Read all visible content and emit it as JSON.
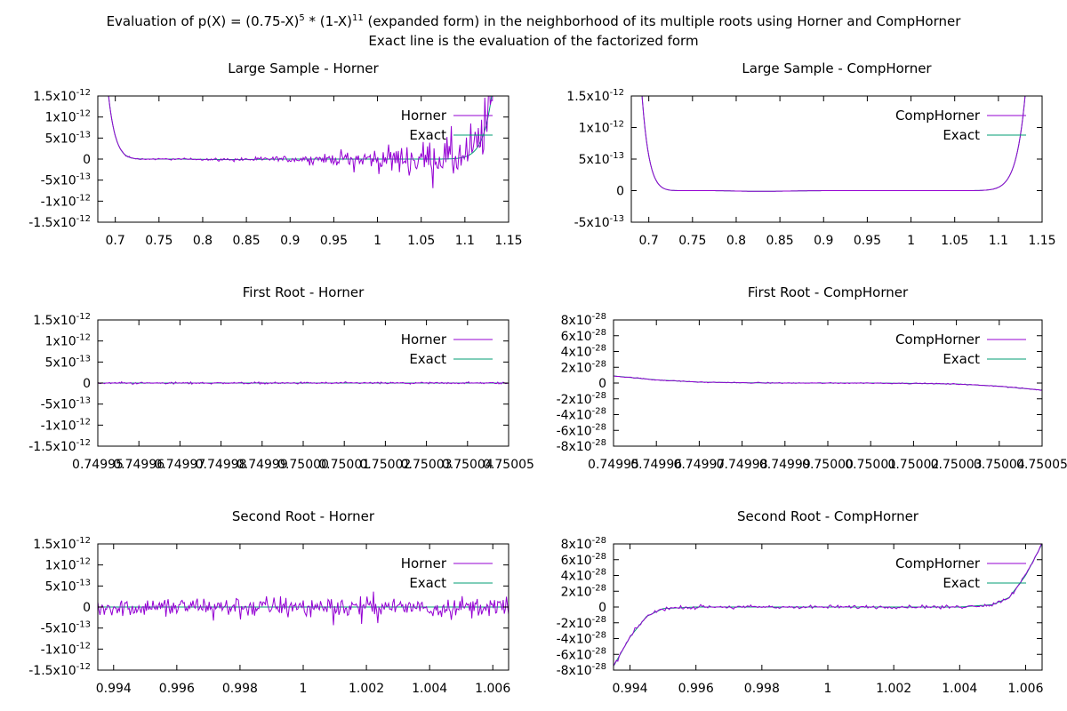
{
  "page": {
    "title_line1": "Evaluation of p(X) = (0.75-X)^5 * (1-X)^11 (expanded form) in the neighborhood of its multiple roots using Horner and CompHorner",
    "title_line2": "Exact line is the evaluation of the factorized form"
  },
  "colors": {
    "horner": "#9400d3",
    "exact": "#009e73",
    "axis": "#000000"
  },
  "chart_data": [
    {
      "type": "line",
      "title": "Large Sample - Horner",
      "xlim": [
        0.68,
        1.15
      ],
      "ylim": [
        -1.5e-12,
        1.5e-12
      ],
      "xticks": [
        "0.7",
        "0.75",
        "0.8",
        "0.85",
        "0.9",
        "0.95",
        "1",
        "1.05",
        "1.1",
        "1.15"
      ],
      "xtick_values": [
        0.7,
        0.75,
        0.8,
        0.85,
        0.9,
        0.95,
        1,
        1.05,
        1.1,
        1.15
      ],
      "yticks": [
        "1.5x10^-12",
        "1x10^-12",
        "5x10^-13",
        "0",
        "-5x10^-13",
        "-1x10^-12",
        "-1.5x10^-12"
      ],
      "ytick_values": [
        1.5e-12,
        1e-12,
        5e-13,
        0,
        -5e-13,
        -1e-12,
        -1.5e-12
      ],
      "series": [
        {
          "name": "Horner",
          "color": "#9400d3",
          "kind": "noisy",
          "root": 0.75,
          "noise_model": "round-off, grows with |x|",
          "noise_amplitude_at_1": 1.5e-13,
          "noise_amplitude_at_1_1": 1.1e-12
        },
        {
          "name": "Exact",
          "color": "#009e73",
          "kind": "exact"
        }
      ]
    },
    {
      "type": "line",
      "title": "Large Sample - CompHorner",
      "xlim": [
        0.68,
        1.15
      ],
      "ylim": [
        -5e-13,
        1.5e-12
      ],
      "xticks": [
        "0.7",
        "0.75",
        "0.8",
        "0.85",
        "0.9",
        "0.95",
        "1",
        "1.05",
        "1.1",
        "1.15"
      ],
      "xtick_values": [
        0.7,
        0.75,
        0.8,
        0.85,
        0.9,
        0.95,
        1,
        1.05,
        1.1,
        1.15
      ],
      "yticks": [
        "1.5x10^-12",
        "1x10^-12",
        "5x10^-13",
        "0",
        "-5x10^-13"
      ],
      "ytick_values": [
        1.5e-12,
        1e-12,
        5e-13,
        0,
        -5e-13
      ],
      "series": [
        {
          "name": "CompHorner",
          "color": "#9400d3",
          "kind": "exact"
        },
        {
          "name": "Exact",
          "color": "#009e73",
          "kind": "exact"
        }
      ]
    },
    {
      "type": "line",
      "title": "First Root - Horner",
      "xlim": [
        0.74995,
        0.75005
      ],
      "ylim": [
        -1.5e-12,
        1.5e-12
      ],
      "xticks": [
        "0.74995",
        "0.74996",
        "0.74997",
        "0.74998",
        "0.74999",
        "0.75000",
        "0.75001",
        "0.75002",
        "0.75003",
        "0.75004",
        "0.75005"
      ],
      "xtick_values": [
        0.74995,
        0.74996,
        0.74997,
        0.74998,
        0.74999,
        0.75,
        0.75001,
        0.75002,
        0.75003,
        0.75004,
        0.75005
      ],
      "yticks": [
        "1.5x10^-12",
        "1x10^-12",
        "5x10^-13",
        "0",
        "-5x10^-13",
        "-1x10^-12",
        "-1.5x10^-12"
      ],
      "ytick_values": [
        1.5e-12,
        1e-12,
        5e-13,
        0,
        -5e-13,
        -1e-12,
        -1.5e-12
      ],
      "series": [
        {
          "name": "Horner",
          "color": "#9400d3",
          "kind": "noisy",
          "noise_amplitude": 3e-14
        },
        {
          "name": "Exact",
          "color": "#009e73",
          "kind": "zero"
        }
      ]
    },
    {
      "type": "line",
      "title": "First Root - CompHorner",
      "xlim": [
        0.74995,
        0.75005
      ],
      "ylim": [
        -8e-28,
        8e-28
      ],
      "xticks": [
        "0.74995",
        "0.74996",
        "0.74997",
        "0.74998",
        "0.74999",
        "0.75000",
        "0.75001",
        "0.75002",
        "0.75003",
        "0.75004",
        "0.75005"
      ],
      "xtick_values": [
        0.74995,
        0.74996,
        0.74997,
        0.74998,
        0.74999,
        0.75,
        0.75001,
        0.75002,
        0.75003,
        0.75004,
        0.75005
      ],
      "yticks": [
        "8x10^-28",
        "6x10^-28",
        "4x10^-28",
        "2x10^-28",
        "0",
        "-2x10^-28",
        "-4x10^-28",
        "-6x10^-28",
        "-8x10^-28"
      ],
      "ytick_values": [
        8e-28,
        6e-28,
        4e-28,
        2e-28,
        0,
        -2e-28,
        -4e-28,
        -6e-28,
        -8e-28
      ],
      "curve_points": [
        [
          0.74995,
          9e-29
        ],
        [
          0.74996,
          4e-29
        ],
        [
          0.74997,
          1.2e-29
        ],
        [
          0.74998,
          4e-30
        ],
        [
          0.74999,
          3e-31
        ],
        [
          0.75,
          0
        ],
        [
          0.75001,
          -3e-31
        ],
        [
          0.75002,
          -4e-30
        ],
        [
          0.75003,
          -1.2e-29
        ],
        [
          0.75004,
          -4e-29
        ],
        [
          0.75005,
          -9e-29
        ]
      ],
      "series": [
        {
          "name": "CompHorner",
          "color": "#9400d3",
          "kind": "curve",
          "noise_amplitude": 8e-30
        },
        {
          "name": "Exact",
          "color": "#009e73",
          "kind": "curve"
        }
      ]
    },
    {
      "type": "line",
      "title": "Second Root - Horner",
      "xlim": [
        0.9935,
        1.0065
      ],
      "ylim": [
        -1.5e-12,
        1.5e-12
      ],
      "xticks": [
        "0.994",
        "0.996",
        "0.998",
        "1",
        "1.002",
        "1.004",
        "1.006"
      ],
      "xtick_values": [
        0.994,
        0.996,
        0.998,
        1,
        1.002,
        1.004,
        1.006
      ],
      "yticks": [
        "1.5x10^-12",
        "1x10^-12",
        "5x10^-13",
        "0",
        "-5x10^-13",
        "-1x10^-12",
        "-1.5x10^-12"
      ],
      "ytick_values": [
        1.5e-12,
        1e-12,
        5e-13,
        0,
        -5e-13,
        -1e-12,
        -1.5e-12
      ],
      "series": [
        {
          "name": "Horner",
          "color": "#9400d3",
          "kind": "noisy",
          "noise_amplitude": 3.5e-13
        },
        {
          "name": "Exact",
          "color": "#009e73",
          "kind": "zero"
        }
      ]
    },
    {
      "type": "line",
      "title": "Second Root - CompHorner",
      "xlim": [
        0.9935,
        1.0065
      ],
      "ylim": [
        -8e-28,
        8e-28
      ],
      "xticks": [
        "0.994",
        "0.996",
        "0.998",
        "1",
        "1.002",
        "1.004",
        "1.006"
      ],
      "xtick_values": [
        0.994,
        0.996,
        0.998,
        1,
        1.002,
        1.004,
        1.006
      ],
      "yticks": [
        "8x10^-28",
        "6x10^-28",
        "4x10^-28",
        "2x10^-28",
        "0",
        "-2x10^-28",
        "-4x10^-28",
        "-6x10^-28",
        "-8x10^-28"
      ],
      "ytick_values": [
        8e-28,
        6e-28,
        4e-28,
        2e-28,
        0,
        -2e-28,
        -4e-28,
        -6e-28,
        -8e-28
      ],
      "curve_points": [
        [
          0.9935,
          -7.5e-28
        ],
        [
          0.994,
          -3.8e-28
        ],
        [
          0.9945,
          -1.2e-28
        ],
        [
          0.995,
          -2e-29
        ],
        [
          0.996,
          0
        ],
        [
          0.998,
          0
        ],
        [
          1,
          0
        ],
        [
          1.002,
          0
        ],
        [
          1.004,
          0
        ],
        [
          1.005,
          3e-29
        ],
        [
          1.0055,
          1.2e-28
        ],
        [
          1.006,
          4e-28
        ],
        [
          1.0065,
          8e-28
        ]
      ],
      "series": [
        {
          "name": "CompHorner",
          "color": "#9400d3",
          "kind": "curve",
          "noise_amplitude": 3e-29
        },
        {
          "name": "Exact",
          "color": "#009e73",
          "kind": "curve"
        }
      ]
    }
  ]
}
